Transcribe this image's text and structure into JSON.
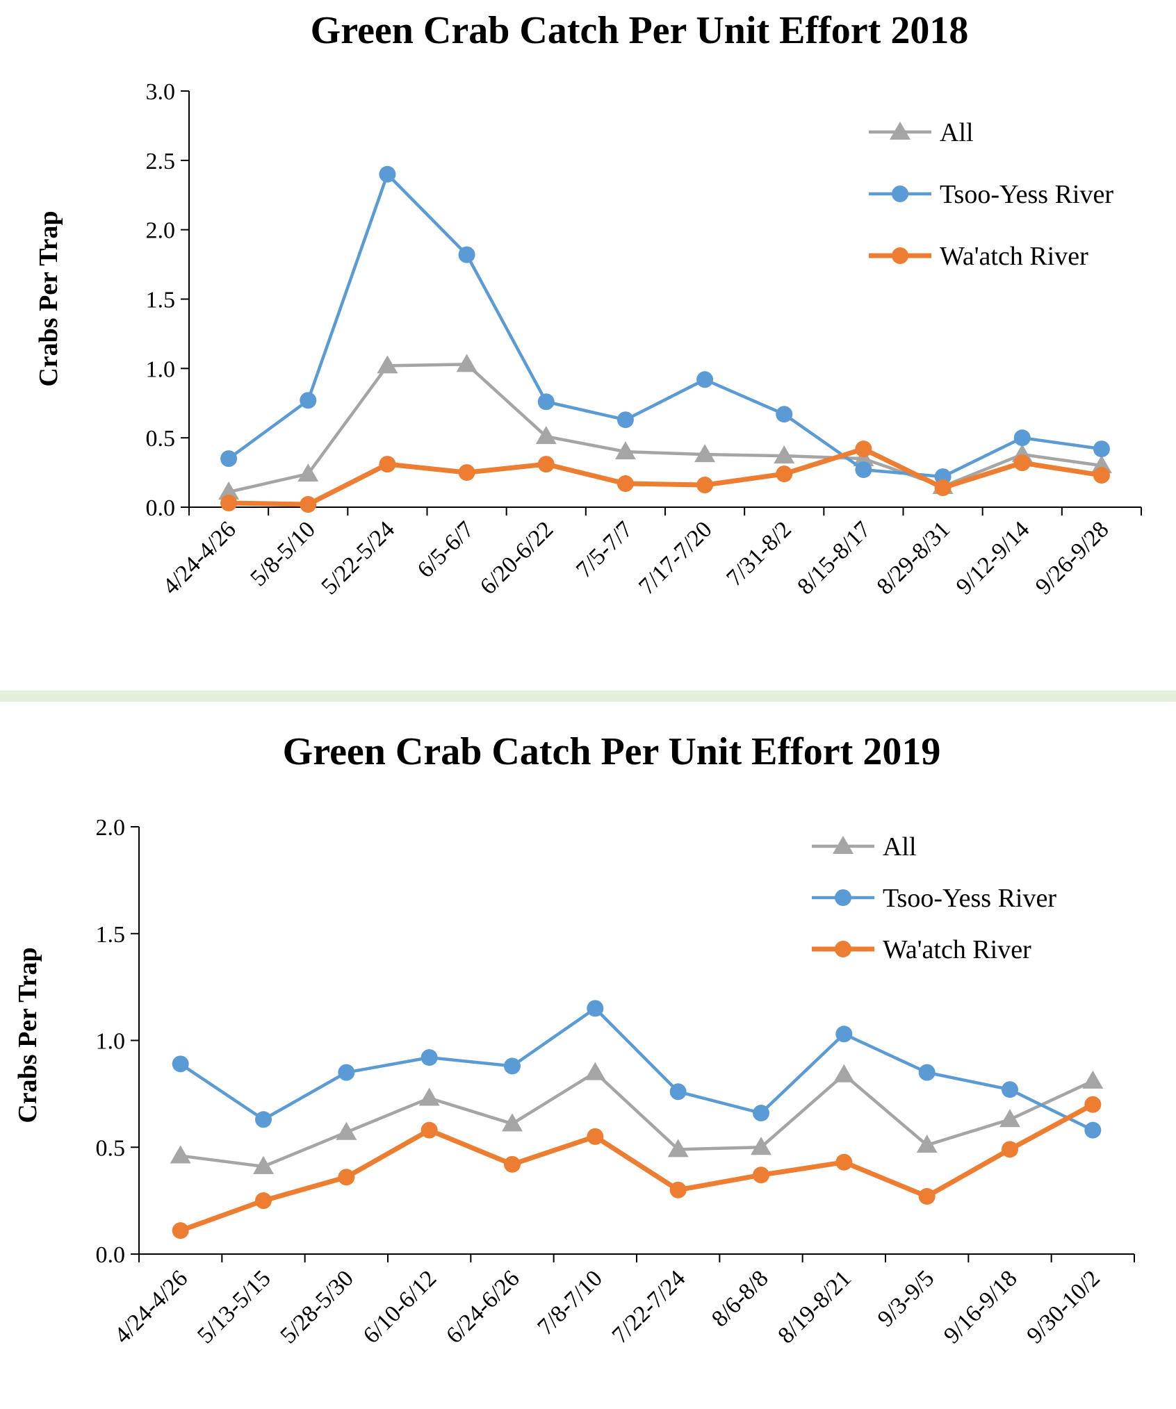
{
  "chart_data": [
    {
      "type": "line",
      "title": "Green Crab Catch Per Unit Effort 2018",
      "xlabel": "",
      "ylabel": "Crabs Per Trap",
      "ylim": [
        0,
        3.0
      ],
      "yticks": [
        "0.0",
        "0.5",
        "1.0",
        "1.5",
        "2.0",
        "2.5",
        "3.0"
      ],
      "grid": false,
      "legend_position": "top-right",
      "categories": [
        "4/24-4/26",
        "5/8-5/10",
        "5/22-5/24",
        "6/5-6/7",
        "6/20-6/22",
        "7/5-7/7",
        "7/17-7/20",
        "7/31-8/2",
        "8/15-8/17",
        "8/29-8/31",
        "9/12-9/14",
        "9/26-9/28"
      ],
      "series": [
        {
          "name": "All",
          "color": "#a5a5a5",
          "marker": "triangle",
          "values": [
            0.11,
            0.24,
            1.02,
            1.03,
            0.51,
            0.4,
            0.38,
            0.37,
            0.35,
            0.15,
            0.38,
            0.3
          ]
        },
        {
          "name": "Tsoo-Yess River",
          "color": "#5b9bd5",
          "marker": "circle",
          "values": [
            0.35,
            0.77,
            2.4,
            1.82,
            0.76,
            0.63,
            0.92,
            0.67,
            0.27,
            0.22,
            0.5,
            0.42
          ]
        },
        {
          "name": "Wa'atch River",
          "color": "#ed7d31",
          "marker": "circle",
          "values": [
            0.03,
            0.02,
            0.31,
            0.25,
            0.31,
            0.17,
            0.16,
            0.24,
            0.42,
            0.14,
            0.32,
            0.23
          ]
        }
      ]
    },
    {
      "type": "line",
      "title": "Green Crab Catch Per Unit Effort 2019",
      "xlabel": "",
      "ylabel": "Crabs Per Trap",
      "ylim": [
        0,
        2.0
      ],
      "yticks": [
        "0.0",
        "0.5",
        "1.0",
        "1.5",
        "2.0"
      ],
      "grid": false,
      "legend_position": "top-right",
      "categories": [
        "4/24-4/26",
        "5/13-5/15",
        "5/28-5/30",
        "6/10-6/12",
        "6/24-6/26",
        "7/8-7/10",
        "7/22-7/24",
        "8/6-8/8",
        "8/19-8/21",
        "9/3-9/5",
        "9/16-9/18",
        "9/30-10/2"
      ],
      "series": [
        {
          "name": "All",
          "color": "#a5a5a5",
          "marker": "triangle",
          "values": [
            0.46,
            0.41,
            0.57,
            0.73,
            0.61,
            0.85,
            0.49,
            0.5,
            0.84,
            0.51,
            0.63,
            0.81
          ]
        },
        {
          "name": "Tsoo-Yess River",
          "color": "#5b9bd5",
          "marker": "circle",
          "values": [
            0.89,
            0.63,
            0.85,
            0.92,
            0.88,
            1.15,
            0.76,
            0.66,
            1.03,
            0.85,
            0.77,
            0.58
          ]
        },
        {
          "name": "Wa'atch River",
          "color": "#ed7d31",
          "marker": "circle",
          "values": [
            0.11,
            0.25,
            0.36,
            0.58,
            0.42,
            0.55,
            0.3,
            0.37,
            0.43,
            0.27,
            0.49,
            0.7
          ]
        }
      ]
    }
  ]
}
